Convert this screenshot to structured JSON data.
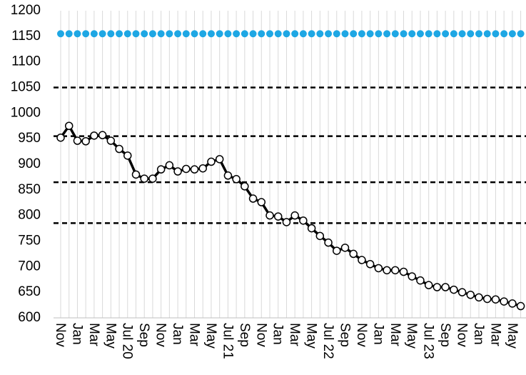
{
  "chart_data": {
    "type": "line",
    "categories": [
      "Nov",
      null,
      "Jan",
      null,
      "Mar",
      null,
      "May",
      null,
      "Jul 20",
      null,
      "Sep",
      null,
      "Nov",
      null,
      "Jan",
      null,
      "Mar",
      null,
      "May",
      null,
      "Jul 21",
      null,
      "Sep",
      null,
      "Nov",
      null,
      "Jan",
      null,
      "Mar",
      null,
      "May",
      null,
      "Jul 22",
      null,
      "Sep",
      null,
      "Nov",
      null,
      "Jan",
      null,
      "Mar",
      null,
      "May",
      null,
      "Jul 23",
      null,
      "Sep",
      null,
      "Nov",
      null,
      "Jan",
      null,
      "Mar",
      null,
      "May",
      null
    ],
    "series": [
      {
        "color": "#000000",
        "values": [
          952,
          975,
          946,
          945,
          956,
          957,
          946,
          930,
          917,
          880,
          872,
          872,
          890,
          898,
          886,
          891,
          890,
          892,
          905,
          910,
          878,
          871,
          857,
          833,
          826,
          800,
          798,
          787,
          800,
          790,
          775,
          760,
          747,
          731,
          737,
          725,
          713,
          705,
          697,
          693,
          693,
          690,
          681,
          673,
          664,
          660,
          660,
          655,
          650,
          645,
          640,
          637,
          636,
          632,
          628,
          623
        ]
      },
      {
        "color": "#1ea7e4",
        "values": [
          1155,
          1155,
          1155,
          1155,
          1155,
          1155,
          1155,
          1155,
          1155,
          1155,
          1155,
          1155,
          1155,
          1155,
          1155,
          1155,
          1155,
          1155,
          1155,
          1155,
          1155,
          1155,
          1155,
          1155,
          1155,
          1155,
          1155,
          1155,
          1155,
          1155,
          1155,
          1155,
          1155,
          1155,
          1155,
          1155,
          1155,
          1155,
          1155,
          1155,
          1155,
          1155,
          1155,
          1155,
          1155,
          1155,
          1155,
          1155,
          1155,
          1155,
          1155,
          1155,
          1155,
          1155,
          1155,
          1155
        ]
      }
    ],
    "reference_lines": [
      {
        "value": 1050,
        "color": "#000000"
      },
      {
        "value": 955,
        "color": "#000000"
      },
      {
        "value": 865,
        "color": "#000000"
      },
      {
        "value": 785,
        "color": "#000000"
      }
    ],
    "ylim": [
      600,
      1200
    ],
    "yticks": [
      600,
      650,
      700,
      750,
      800,
      850,
      900,
      950,
      1000,
      1050,
      1100,
      1150,
      1200
    ],
    "grid": "x"
  }
}
